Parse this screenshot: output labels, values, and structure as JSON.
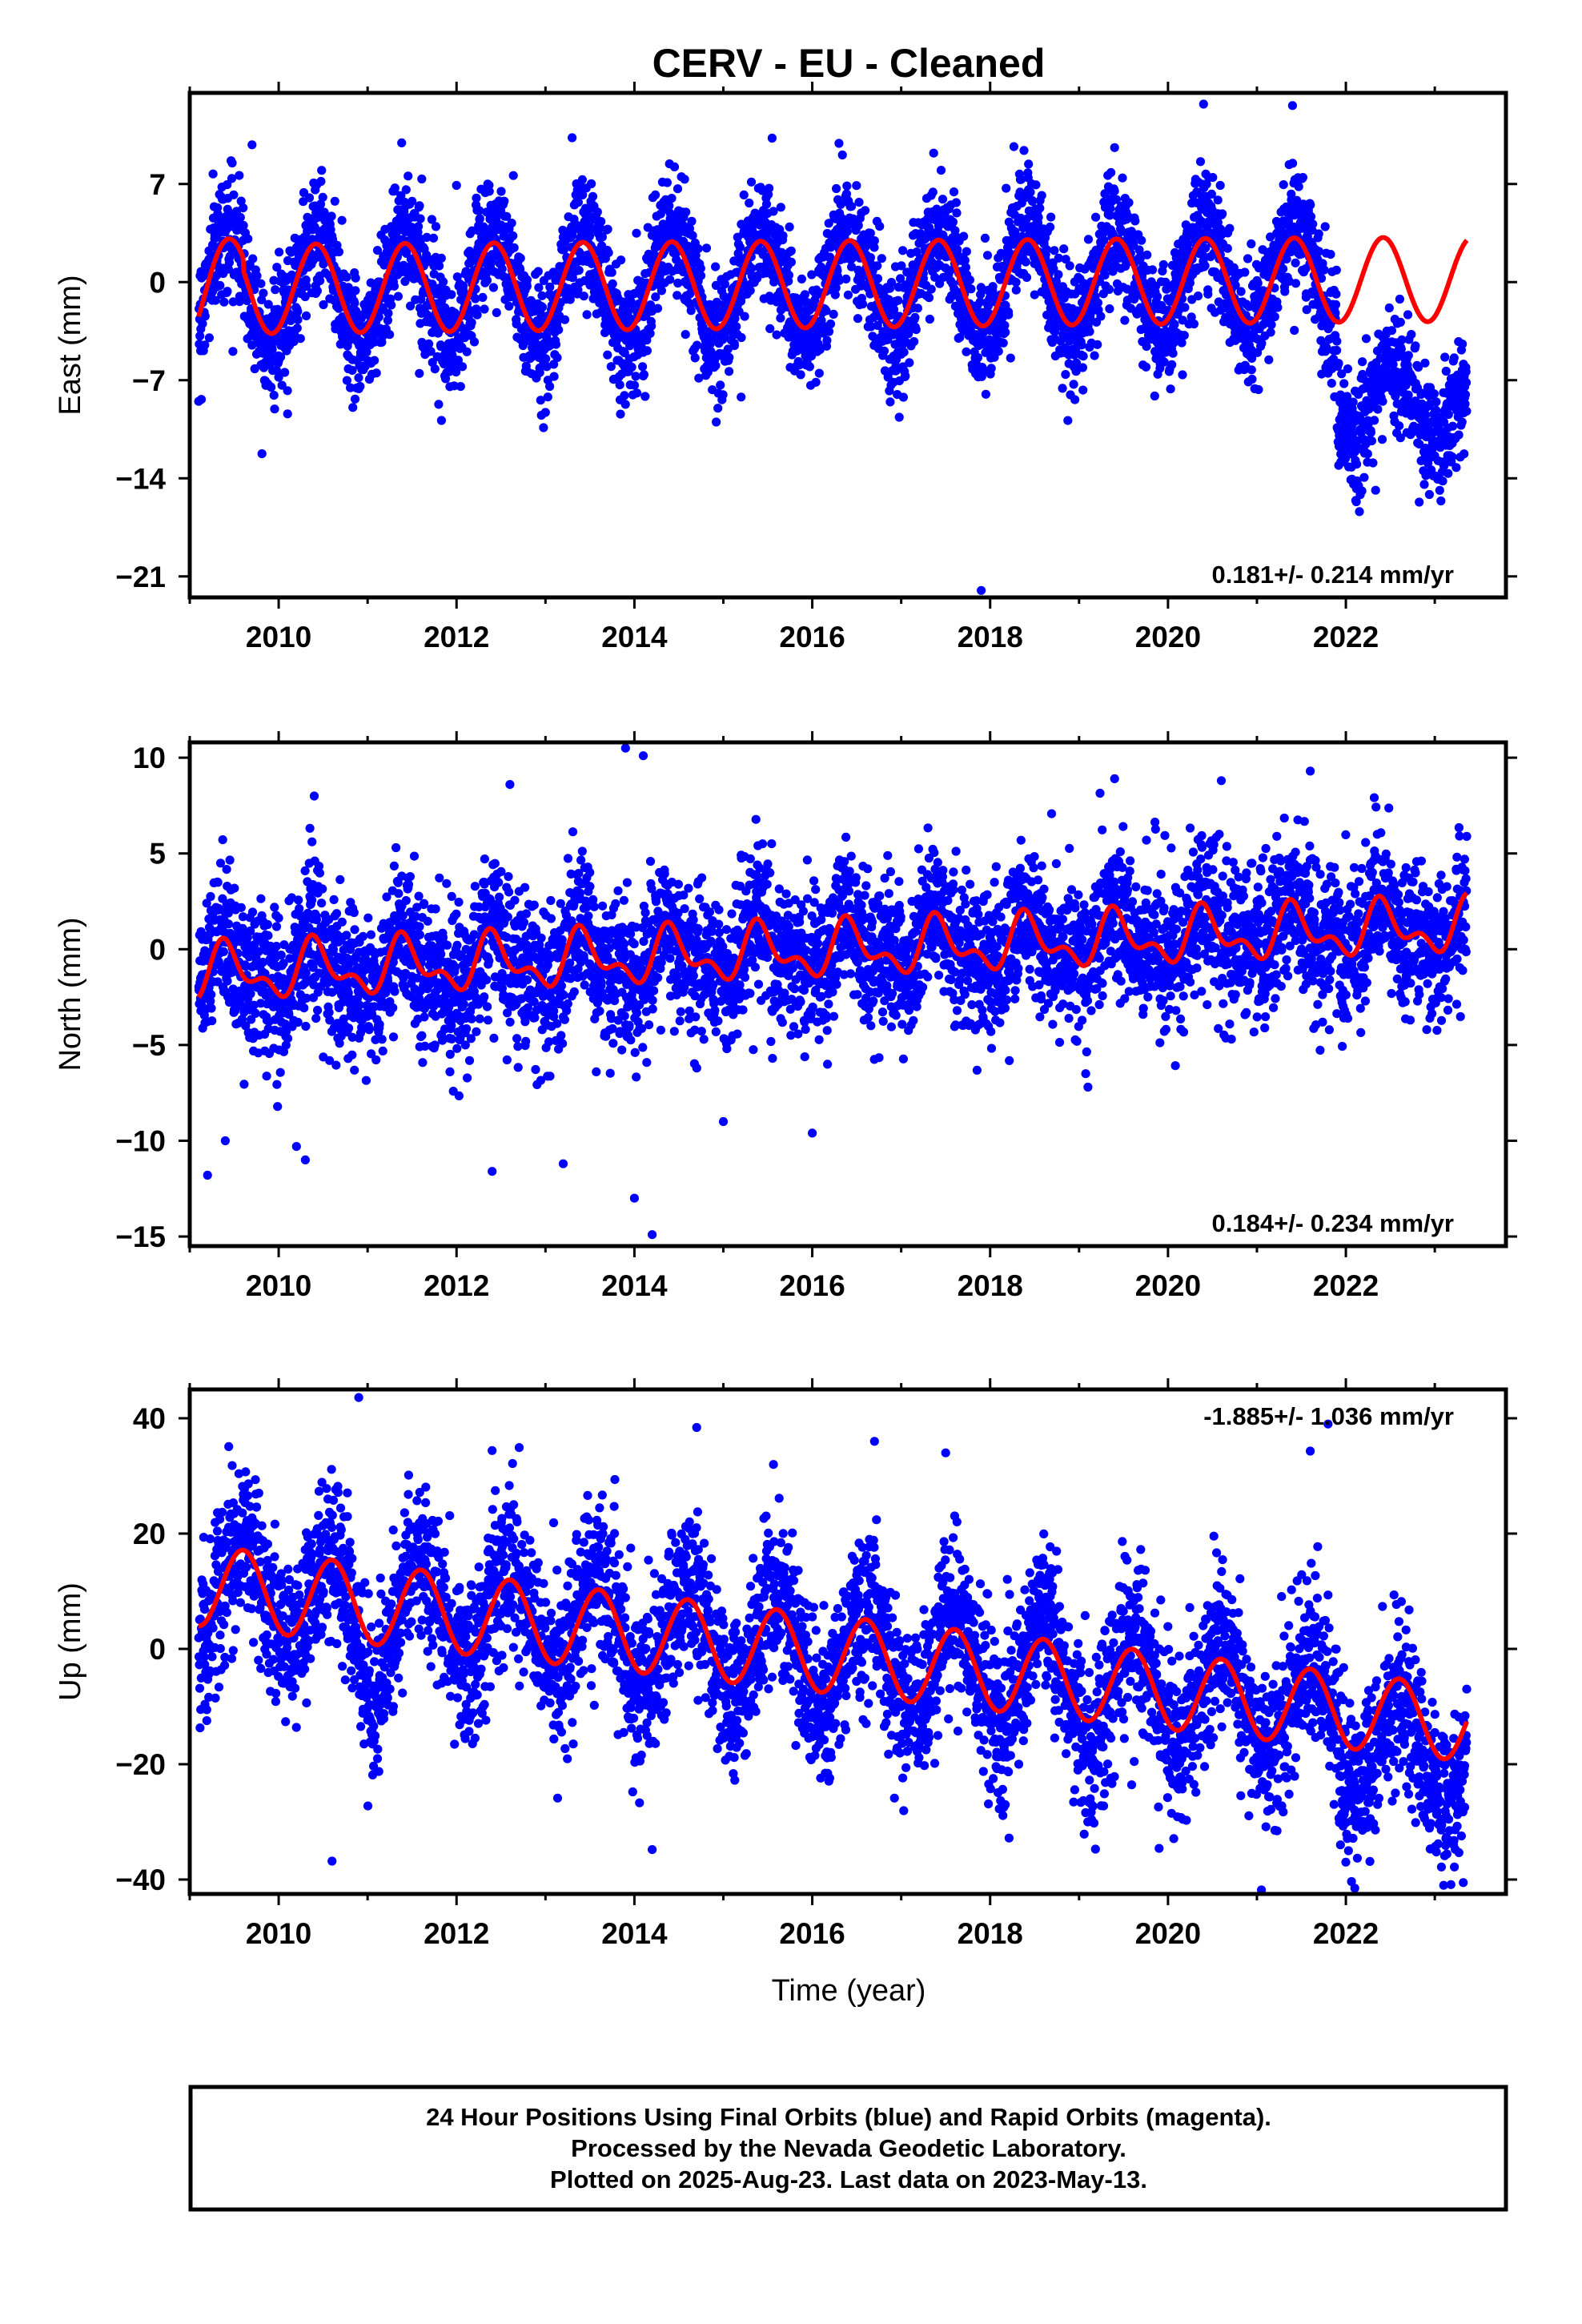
{
  "title": "CERV  - EU - Cleaned",
  "caption": {
    "line1": "24 Hour Positions Using Final Orbits (blue) and Rapid Orbits (magenta).",
    "line2": "Processed by the Nevada Geodetic Laboratory.",
    "line3": "Plotted on 2025-Aug-23. Last data on 2023-May-13."
  },
  "colors": {
    "observations": "#0000ff",
    "model": "#ff0000",
    "frame": "#000000"
  },
  "chart_data": [
    {
      "type": "scatter",
      "component": "east",
      "xlabel": "",
      "ylabel": "East (mm)",
      "xlim": [
        2009.0,
        2023.8
      ],
      "ylim": [
        -22.5,
        13.5
      ],
      "xticks": [
        2010,
        2012,
        2014,
        2016,
        2018,
        2020,
        2022
      ],
      "yticks": [
        7,
        0,
        -7,
        -14,
        -21
      ],
      "ytick_labels": [
        "7",
        "0",
        "−7",
        "−14",
        "−21"
      ],
      "rate_label": "0.181+/- 0.214 mm/yr",
      "rate_position": "bottom-right",
      "data_start": 2009.1,
      "data_end": 2023.36,
      "model": {
        "period_years": 1.0,
        "phase_peak_fraction": 0.42,
        "segments": [
          {
            "from": 2009.1,
            "to": 2009.6,
            "value_from": -3.0,
            "value_to": 2.0
          },
          {
            "from": 2009.6,
            "to": 2022.0,
            "value_from": -1.0,
            "value_to": 1.2
          },
          {
            "from": 2022.0,
            "to": 2023.36,
            "value_from": 1.2,
            "value_to": 1.3
          }
        ],
        "amplitude_start": 3.2,
        "amplitude_end": 3.0
      },
      "scatter_description": {
        "points": 4800,
        "noise_sd": 2.1,
        "seasonal_amplitude": 3.5,
        "offset_after": {
          "year": 2021.9,
          "shift": -8.5,
          "amplitude": 2.6
        },
        "outliers": [
          {
            "x": 2009.7,
            "y": 9.8
          },
          {
            "x": 2010.1,
            "y": -9.4
          },
          {
            "x": 2012.0,
            "y": 6.9
          },
          {
            "x": 2013.3,
            "y": 10.3
          },
          {
            "x": 2015.2,
            "y": -8.2
          },
          {
            "x": 2016.3,
            "y": 9.9
          },
          {
            "x": 2017.9,
            "y": -22.0
          },
          {
            "x": 2019.4,
            "y": 9.6
          },
          {
            "x": 2020.4,
            "y": 12.7
          },
          {
            "x": 2021.4,
            "y": 12.6
          },
          {
            "x": 2013.0,
            "y": -9.3
          },
          {
            "x": 2022.9,
            "y": -13.8
          }
        ]
      }
    },
    {
      "type": "scatter",
      "component": "north",
      "xlabel": "",
      "ylabel": "North (mm)",
      "xlim": [
        2009.0,
        2023.8
      ],
      "ylim": [
        -15.5,
        10.8
      ],
      "xticks": [
        2010,
        2012,
        2014,
        2016,
        2018,
        2020,
        2022
      ],
      "yticks": [
        10,
        5,
        0,
        -5,
        -10,
        -15
      ],
      "ytick_labels": [
        "10",
        "5",
        "0",
        "−5",
        "−10",
        "−15"
      ],
      "rate_label": "0.184+/- 0.234 mm/yr",
      "rate_position": "bottom-right",
      "data_start": 2009.1,
      "data_end": 2023.36,
      "model": {
        "period_years": 1.0,
        "phase_peak_fraction": 0.42,
        "trend_start": -1.3,
        "trend_end": 1.2,
        "amplitude_start": 1.2,
        "amplitude_end": 1.1,
        "semiannual": 0.7
      },
      "scatter_description": {
        "points": 4800,
        "noise_sd": 1.9,
        "outliers": [
          {
            "x": 2009.2,
            "y": -11.8
          },
          {
            "x": 2009.4,
            "y": -10.0
          },
          {
            "x": 2010.2,
            "y": -10.3
          },
          {
            "x": 2010.3,
            "y": -11.0
          },
          {
            "x": 2010.4,
            "y": 8.0
          },
          {
            "x": 2012.4,
            "y": -11.6
          },
          {
            "x": 2012.6,
            "y": 8.6
          },
          {
            "x": 2013.2,
            "y": -11.2
          },
          {
            "x": 2013.9,
            "y": 10.5
          },
          {
            "x": 2014.1,
            "y": 10.1
          },
          {
            "x": 2014.0,
            "y": -13.0
          },
          {
            "x": 2014.2,
            "y": -14.9
          },
          {
            "x": 2015.0,
            "y": -9.0
          },
          {
            "x": 2016.0,
            "y": -9.6
          },
          {
            "x": 2019.1,
            "y": -7.2
          },
          {
            "x": 2019.4,
            "y": 8.9
          },
          {
            "x": 2021.6,
            "y": 9.3
          },
          {
            "x": 2020.6,
            "y": 8.8
          }
        ]
      }
    },
    {
      "type": "scatter",
      "component": "up",
      "xlabel": "Time (year)",
      "ylabel": "Up (mm)",
      "xlim": [
        2009.0,
        2023.8
      ],
      "ylim": [
        -42.5,
        45.0
      ],
      "xticks": [
        2010,
        2012,
        2014,
        2016,
        2018,
        2020,
        2022
      ],
      "yticks": [
        40,
        20,
        0,
        -20,
        -40
      ],
      "ytick_labels": [
        "40",
        "20",
        "0",
        "−20",
        "−40"
      ],
      "rate_label": "-1.885+/- 1.036 mm/yr",
      "rate_position": "top-right",
      "data_start": 2009.1,
      "data_end": 2023.36,
      "model": {
        "period_years": 1.0,
        "phase_peak_fraction": 0.6,
        "trend_start": 11.0,
        "trend_end": -13.0,
        "amplitude_start": 7.0,
        "amplitude_end": 6.5
      },
      "scatter_description": {
        "points": 4800,
        "noise_sd": 7.0,
        "seasonal_amplitude": 9.0,
        "outliers": [
          {
            "x": 2010.9,
            "y": 43.6
          },
          {
            "x": 2012.4,
            "y": 34.4
          },
          {
            "x": 2014.2,
            "y": -34.8
          },
          {
            "x": 2014.7,
            "y": 38.4
          },
          {
            "x": 2016.7,
            "y": 36.0
          },
          {
            "x": 2017.5,
            "y": 34.0
          },
          {
            "x": 2019.9,
            "y": -34.6
          },
          {
            "x": 2021.6,
            "y": 34.3
          },
          {
            "x": 2021.8,
            "y": 39.0
          },
          {
            "x": 2022.1,
            "y": -41.5
          },
          {
            "x": 2023.1,
            "y": -41.0
          },
          {
            "x": 2010.6,
            "y": -36.8
          }
        ]
      }
    }
  ]
}
